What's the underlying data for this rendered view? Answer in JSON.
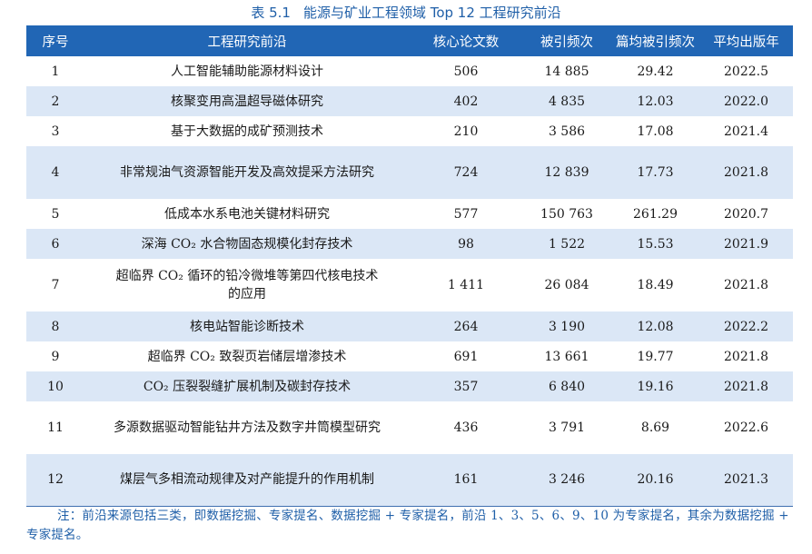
{
  "title": {
    "number": "表 5.1",
    "text": "能源与矿业工程领域 Top 12 工程研究前沿"
  },
  "table": {
    "headers": [
      "序号",
      "工程研究前沿",
      "核心论文数",
      "被引频次",
      "篇均被引频次",
      "平均出版年"
    ],
    "rows": [
      {
        "no": "1",
        "topic": "人工智能辅助能源材料设计",
        "papers": "506",
        "citations": "14 885",
        "avg_citations": "29.42",
        "avg_year": "2022.5"
      },
      {
        "no": "2",
        "topic": "核聚变用高温超导磁体研究",
        "papers": "402",
        "citations": "4 835",
        "avg_citations": "12.03",
        "avg_year": "2022.0"
      },
      {
        "no": "3",
        "topic": "基于大数据的成矿预测技术",
        "papers": "210",
        "citations": "3 586",
        "avg_citations": "17.08",
        "avg_year": "2021.4"
      },
      {
        "no": "4",
        "topic": "非常规油气资源智能开发及高效提采方法研究",
        "papers": "724",
        "citations": "12 839",
        "avg_citations": "17.73",
        "avg_year": "2021.8"
      },
      {
        "no": "5",
        "topic": "低成本水系电池关键材料研究",
        "papers": "577",
        "citations": "150 763",
        "avg_citations": "261.29",
        "avg_year": "2020.7"
      },
      {
        "no": "6",
        "topic": "深海 CO₂ 水合物固态规模化封存技术",
        "papers": "98",
        "citations": "1 522",
        "avg_citations": "15.53",
        "avg_year": "2021.9"
      },
      {
        "no": "7",
        "topic": "超临界 CO₂ 循环的铅冷微堆等第四代核电技术的应用",
        "papers": "1 411",
        "citations": "26 084",
        "avg_citations": "18.49",
        "avg_year": "2021.8"
      },
      {
        "no": "8",
        "topic": "核电站智能诊断技术",
        "papers": "264",
        "citations": "3 190",
        "avg_citations": "12.08",
        "avg_year": "2022.2"
      },
      {
        "no": "9",
        "topic": "超临界 CO₂ 致裂页岩储层增渗技术",
        "papers": "691",
        "citations": "13 661",
        "avg_citations": "19.77",
        "avg_year": "2021.8"
      },
      {
        "no": "10",
        "topic": "CO₂ 压裂裂缝扩展机制及碳封存技术",
        "papers": "357",
        "citations": "6 840",
        "avg_citations": "19.16",
        "avg_year": "2021.8"
      },
      {
        "no": "11",
        "topic": "多源数据驱动智能钻井方法及数字井筒模型研究",
        "papers": "436",
        "citations": "3 791",
        "avg_citations": "8.69",
        "avg_year": "2022.6"
      },
      {
        "no": "12",
        "topic": "煤层气多相流动规律及对产能提升的作用机制",
        "papers": "161",
        "citations": "3 246",
        "avg_citations": "20.16",
        "avg_year": "2021.3"
      }
    ]
  },
  "note": "注：前沿来源包括三类，即数据挖掘、专家提名、数据挖掘 + 专家提名，前沿 1、3、5、6、9、10 为专家提名，其余为数据挖掘 + 专家提名。",
  "colors": {
    "header_bg": "#2166b5",
    "alt_row_bg": "#dbe7f6",
    "title_text": "#1f5fa8"
  }
}
